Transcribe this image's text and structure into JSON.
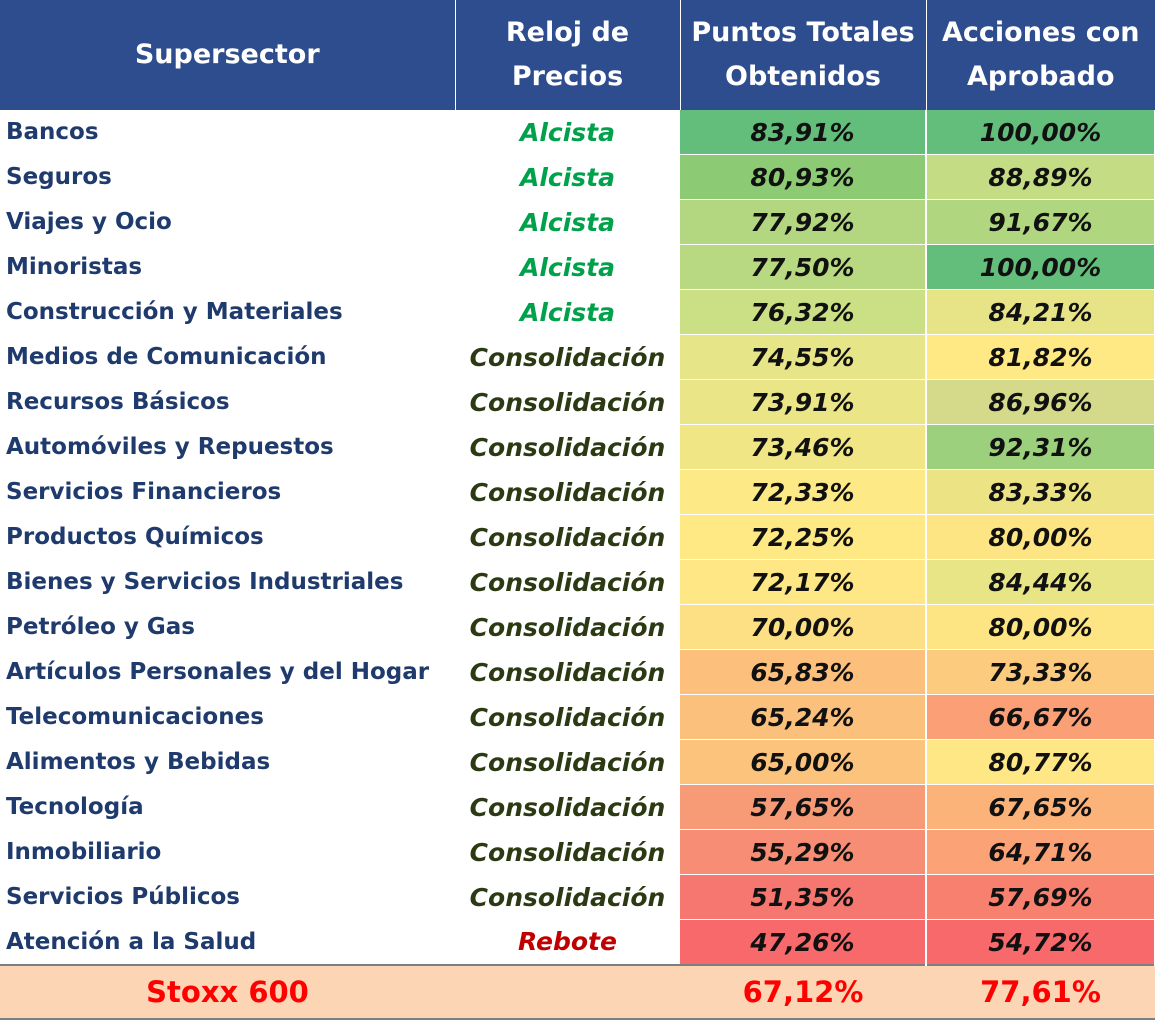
{
  "header": {
    "supersector": "Supersector",
    "reloj_line1": "Reloj de",
    "reloj_line2": "Precios",
    "puntos_line1": "Puntos Totales",
    "puntos_line2": "Obtenidos",
    "acciones_line1": "Acciones con",
    "acciones_line2": "Aprobado"
  },
  "rows": [
    {
      "name": "Bancos",
      "clock": "Alcista",
      "clock_type": "alcista",
      "puntos": "83,91%",
      "puntos_color": "#63be7b",
      "acciones": "100,00%",
      "acciones_color": "#63be7b"
    },
    {
      "name": "Seguros",
      "clock": "Alcista",
      "clock_type": "alcista",
      "puntos": "80,93%",
      "puntos_color": "#8ccb74",
      "acciones": "88,89%",
      "acciones_color": "#c4dc84"
    },
    {
      "name": "Viajes y Ocio",
      "clock": "Alcista",
      "clock_type": "alcista",
      "puntos": "77,92%",
      "puntos_color": "#b3d680",
      "acciones": "91,67%",
      "acciones_color": "#b0d680"
    },
    {
      "name": "Minoristas",
      "clock": "Alcista",
      "clock_type": "alcista",
      "puntos": "77,50%",
      "puntos_color": "#b9d882",
      "acciones": "100,00%",
      "acciones_color": "#63be7b"
    },
    {
      "name": "Construcción y Materiales",
      "clock": "Alcista",
      "clock_type": "alcista",
      "puntos": "76,32%",
      "puntos_color": "#cbdf84",
      "acciones": "84,21%",
      "acciones_color": "#e6e487"
    },
    {
      "name": "Medios de Comunicación",
      "clock": "Consolidación",
      "clock_type": "consolidacion",
      "puntos": "74,55%",
      "puntos_color": "#e6e587",
      "acciones": "81,82%",
      "acciones_color": "#fee984"
    },
    {
      "name": "Recursos Básicos",
      "clock": "Consolidación",
      "clock_type": "consolidacion",
      "puntos": "73,91%",
      "puntos_color": "#eae586",
      "acciones": "86,96%",
      "acciones_color": "#d5d98a"
    },
    {
      "name": "Automóviles y Repuestos",
      "clock": "Consolidación",
      "clock_type": "consolidacion",
      "puntos": "73,46%",
      "puntos_color": "#f0e685",
      "acciones": "92,31%",
      "acciones_color": "#9cd07c"
    },
    {
      "name": "Servicios Financieros",
      "clock": "Consolidación",
      "clock_type": "consolidacion",
      "puntos": "72,33%",
      "puntos_color": "#fde985",
      "acciones": "83,33%",
      "acciones_color": "#ece384"
    },
    {
      "name": "Productos Químicos",
      "clock": "Consolidación",
      "clock_type": "consolidacion",
      "puntos": "72,25%",
      "puntos_color": "#fee985",
      "acciones": "80,00%",
      "acciones_color": "#fee583"
    },
    {
      "name": "Bienes y Servicios Industriales",
      "clock": "Consolidación",
      "clock_type": "consolidacion",
      "puntos": "72,17%",
      "puntos_color": "#fee784",
      "acciones": "84,44%",
      "acciones_color": "#e8e586"
    },
    {
      "name": "Petróleo y Gas",
      "clock": "Consolidación",
      "clock_type": "consolidacion",
      "puntos": "70,00%",
      "puntos_color": "#fde083",
      "acciones": "80,00%",
      "acciones_color": "#fee583"
    },
    {
      "name": "Artículos Personales y del Hogar",
      "clock": "Consolidación",
      "clock_type": "consolidacion",
      "puntos": "65,83%",
      "puntos_color": "#fcc07c",
      "acciones": "73,33%",
      "acciones_color": "#fdcb7e"
    },
    {
      "name": "Telecomunicaciones",
      "clock": "Consolidación",
      "clock_type": "consolidacion",
      "puntos": "65,24%",
      "puntos_color": "#fbc07c",
      "acciones": "66,67%",
      "acciones_color": "#fb9f76"
    },
    {
      "name": "Alimentos y Bebidas",
      "clock": "Consolidación",
      "clock_type": "consolidacion",
      "puntos": "65,00%",
      "puntos_color": "#fcc37d",
      "acciones": "80,77%",
      "acciones_color": "#fee784"
    },
    {
      "name": "Tecnología",
      "clock": "Consolidación",
      "clock_type": "consolidacion",
      "puntos": "57,65%",
      "puntos_color": "#f79a76",
      "acciones": "67,65%",
      "acciones_color": "#fcb37a"
    },
    {
      "name": "Inmobiliario",
      "clock": "Consolidación",
      "clock_type": "consolidacion",
      "puntos": "55,29%",
      "puntos_color": "#f78d74",
      "acciones": "64,71%",
      "acciones_color": "#fba376"
    },
    {
      "name": "Servicios Públicos",
      "clock": "Consolidación",
      "clock_type": "consolidacion",
      "puntos": "51,35%",
      "puntos_color": "#f5776f",
      "acciones": "57,69%",
      "acciones_color": "#f8806f"
    },
    {
      "name": "Atención a la Salud",
      "clock": "Rebote",
      "clock_type": "rebote",
      "puntos": "47,26%",
      "puntos_color": "#f8696b",
      "acciones": "54,72%",
      "acciones_color": "#f8696b"
    }
  ],
  "total": {
    "name": "Stoxx 600",
    "puntos": "67,12%",
    "acciones": "77,61%"
  }
}
